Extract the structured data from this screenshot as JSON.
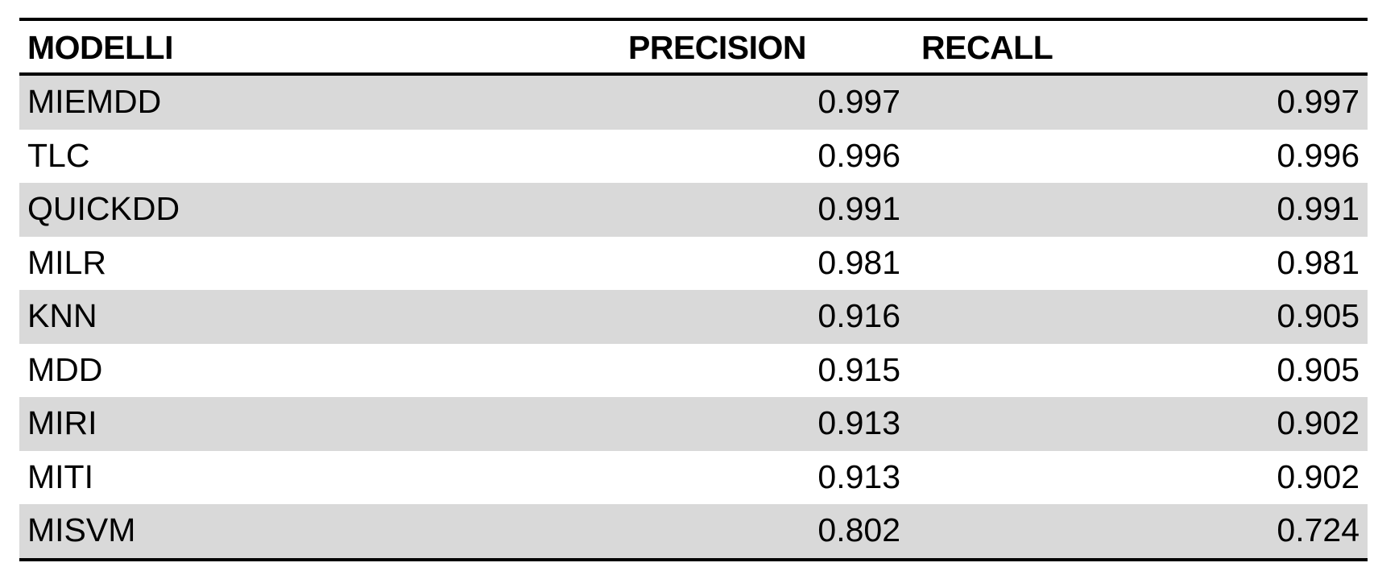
{
  "table": {
    "headers": {
      "model": "MODELLI",
      "precision": "PRECISION",
      "recall": "RECALL"
    },
    "rows": [
      {
        "model": "MIEMDD",
        "precision": "0.997",
        "recall": "0.997"
      },
      {
        "model": "TLC",
        "precision": "0.996",
        "recall": "0.996"
      },
      {
        "model": "QUICKDD",
        "precision": "0.991",
        "recall": "0.991"
      },
      {
        "model": "MILR",
        "precision": "0.981",
        "recall": "0.981"
      },
      {
        "model": "KNN",
        "precision": "0.916",
        "recall": "0.905"
      },
      {
        "model": "MDD",
        "precision": "0.915",
        "recall": "0.905"
      },
      {
        "model": "MIRI",
        "precision": "0.913",
        "recall": "0.902"
      },
      {
        "model": "MITI",
        "precision": "0.913",
        "recall": "0.902"
      },
      {
        "model": "MISVM",
        "precision": "0.802",
        "recall": "0.724"
      }
    ],
    "shade_color": "#d9d9d9"
  }
}
